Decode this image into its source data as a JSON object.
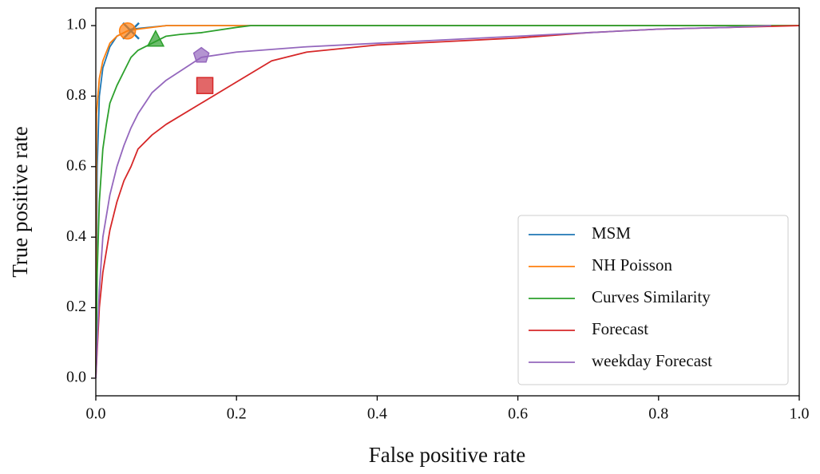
{
  "chart_data": {
    "type": "line",
    "x_label": "False positive rate",
    "y_label": "True positive rate",
    "xlim": [
      0,
      1
    ],
    "ylim": [
      -0.05,
      1.05
    ],
    "xticks": [
      {
        "value": 0,
        "label": "0.0"
      },
      0.2,
      0.4,
      0.6,
      0.8,
      {
        "value": 1,
        "label": "1.0"
      }
    ],
    "yticks": [
      {
        "value": 0,
        "label": "0.0"
      },
      0.2,
      0.4,
      0.6,
      0.8,
      {
        "value": 1,
        "label": "1.0"
      }
    ],
    "legend": "lower right",
    "series": [
      {
        "name": "MSM",
        "color": "#1f77b4",
        "marker": "x",
        "x": [
          0,
          0.002,
          0.005,
          0.01,
          0.02,
          0.03,
          0.04,
          0.05,
          0.1,
          0.2,
          1
        ],
        "values": [
          0,
          0.6,
          0.8,
          0.88,
          0.94,
          0.97,
          0.98,
          0.99,
          1,
          1,
          1
        ],
        "point": {
          "x": 0.05,
          "y": 0.985
        }
      },
      {
        "name": "NH Poisson",
        "color": "#ff7f0e",
        "marker": "o",
        "x": [
          0,
          0.001,
          0.005,
          0.01,
          0.02,
          0.03,
          0.045,
          0.06,
          0.1,
          1
        ],
        "values": [
          0,
          0.75,
          0.85,
          0.9,
          0.95,
          0.97,
          0.985,
          0.99,
          1,
          1
        ],
        "point": {
          "x": 0.045,
          "y": 0.985
        }
      },
      {
        "name": "Curves Similarity",
        "color": "#2ca02c",
        "marker": "^",
        "x": [
          0,
          0.002,
          0.005,
          0.01,
          0.015,
          0.02,
          0.03,
          0.04,
          0.05,
          0.06,
          0.08,
          0.1,
          0.12,
          0.15,
          0.2,
          0.22,
          1
        ],
        "values": [
          0,
          0.3,
          0.5,
          0.65,
          0.72,
          0.78,
          0.83,
          0.87,
          0.91,
          0.93,
          0.95,
          0.97,
          0.975,
          0.98,
          0.995,
          1,
          1
        ],
        "point": {
          "x": 0.085,
          "y": 0.96
        }
      },
      {
        "name": "Forecast",
        "color": "#d62728",
        "marker": "s",
        "x": [
          0,
          0.005,
          0.01,
          0.02,
          0.03,
          0.04,
          0.05,
          0.06,
          0.08,
          0.1,
          0.15,
          0.2,
          0.25,
          0.3,
          0.4,
          0.5,
          0.6,
          0.7,
          0.8,
          0.9,
          1
        ],
        "values": [
          0,
          0.2,
          0.3,
          0.42,
          0.5,
          0.56,
          0.6,
          0.65,
          0.69,
          0.72,
          0.78,
          0.84,
          0.9,
          0.925,
          0.945,
          0.955,
          0.965,
          0.98,
          0.99,
          0.995,
          1
        ],
        "point": {
          "x": 0.155,
          "y": 0.83
        }
      },
      {
        "name": "weekday Forecast",
        "color": "#9467bd",
        "marker": "p",
        "x": [
          0,
          0.005,
          0.01,
          0.02,
          0.03,
          0.04,
          0.05,
          0.06,
          0.08,
          0.1,
          0.15,
          0.2,
          0.3,
          0.4,
          0.5,
          0.6,
          0.7,
          0.8,
          0.9,
          0.96
        ],
        "values": [
          0,
          0.25,
          0.4,
          0.52,
          0.6,
          0.66,
          0.71,
          0.75,
          0.81,
          0.845,
          0.91,
          0.925,
          0.94,
          0.95,
          0.96,
          0.97,
          0.98,
          0.99,
          0.995,
          1
        ],
        "point": {
          "x": 0.15,
          "y": 0.915
        }
      }
    ]
  }
}
